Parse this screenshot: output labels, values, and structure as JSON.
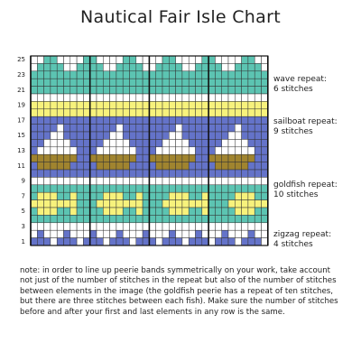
{
  "title": "Nautical Fair Isle Chart",
  "row_labels": [
    25,
    23,
    21,
    19,
    17,
    15,
    13,
    11,
    9,
    7,
    5,
    3,
    1
  ],
  "annotations": [
    {
      "title": "wave repeat:",
      "stitches": "6 stitches"
    },
    {
      "title": "sailboat repeat:",
      "stitches": "9 stitches"
    },
    {
      "title": "goldfish repeat:",
      "stitches": "10 stitches"
    },
    {
      "title": "zigzag repeat:",
      "stitches": "4 stitches"
    }
  ],
  "note": "note: in order to line up peerie bands symmetrically on your work, take account not just of the number of stitches in the repeat but also of the number of stitches between elements in the image (the goldfish peerie has a repeat of ten stitches, but there are three stitches between each fish). Make sure the number of stitches before and after your first and last elements in any row is the same."
}
